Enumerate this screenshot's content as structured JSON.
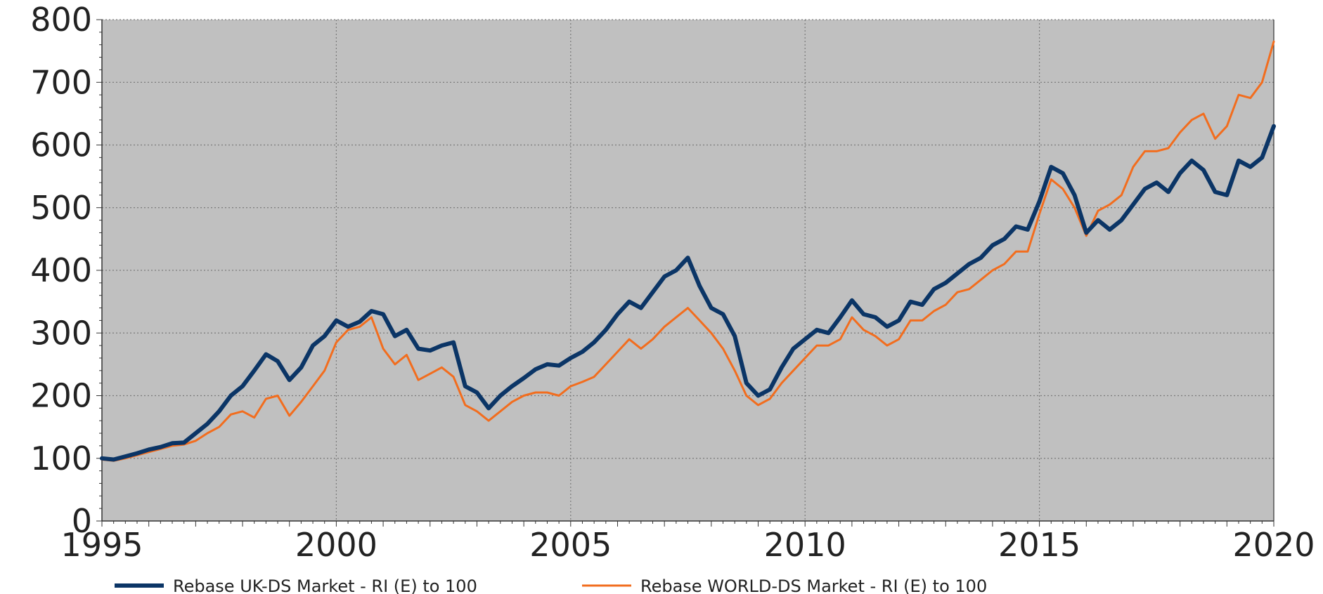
{
  "chart_data": {
    "type": "line",
    "title": "",
    "xlabel": "",
    "ylabel": "",
    "xlim": [
      1995,
      2020
    ],
    "ylim": [
      0,
      800
    ],
    "y_ticks": [
      0,
      100,
      200,
      300,
      400,
      500,
      600,
      700,
      800
    ],
    "x_ticks": [
      1995,
      2000,
      2005,
      2010,
      2015,
      2020
    ],
    "y_tick_labels": [
      "0",
      "100",
      "200",
      "300",
      "400",
      "500",
      "600",
      "700",
      "800"
    ],
    "x_tick_labels": [
      "1995",
      "2000",
      "2005",
      "2010",
      "2015",
      "2020"
    ],
    "grid": true,
    "plot_background": "#c0c0c0",
    "legend_position": "bottom",
    "series": [
      {
        "name": "Rebase UK-DS Market - RI (E) to 100",
        "color": "#0b3566",
        "points": [
          [
            1995.0,
            100
          ],
          [
            1995.25,
            98
          ],
          [
            1995.5,
            103
          ],
          [
            1995.75,
            108
          ],
          [
            1996.0,
            114
          ],
          [
            1996.25,
            118
          ],
          [
            1996.5,
            124
          ],
          [
            1996.75,
            125
          ],
          [
            1997.0,
            140
          ],
          [
            1997.25,
            155
          ],
          [
            1997.5,
            175
          ],
          [
            1997.75,
            200
          ],
          [
            1998.0,
            215
          ],
          [
            1998.25,
            240
          ],
          [
            1998.5,
            266
          ],
          [
            1998.75,
            255
          ],
          [
            1999.0,
            225
          ],
          [
            1999.25,
            245
          ],
          [
            1999.5,
            280
          ],
          [
            1999.75,
            295
          ],
          [
            2000.0,
            320
          ],
          [
            2000.25,
            310
          ],
          [
            2000.5,
            318
          ],
          [
            2000.75,
            335
          ],
          [
            2001.0,
            330
          ],
          [
            2001.25,
            295
          ],
          [
            2001.5,
            305
          ],
          [
            2001.75,
            275
          ],
          [
            2002.0,
            272
          ],
          [
            2002.25,
            280
          ],
          [
            2002.5,
            285
          ],
          [
            2002.75,
            215
          ],
          [
            2003.0,
            205
          ],
          [
            2003.25,
            180
          ],
          [
            2003.5,
            200
          ],
          [
            2003.75,
            215
          ],
          [
            2004.0,
            228
          ],
          [
            2004.25,
            242
          ],
          [
            2004.5,
            250
          ],
          [
            2004.75,
            248
          ],
          [
            2005.0,
            260
          ],
          [
            2005.25,
            270
          ],
          [
            2005.5,
            285
          ],
          [
            2005.75,
            305
          ],
          [
            2006.0,
            330
          ],
          [
            2006.25,
            350
          ],
          [
            2006.5,
            340
          ],
          [
            2006.75,
            365
          ],
          [
            2007.0,
            390
          ],
          [
            2007.25,
            400
          ],
          [
            2007.5,
            420
          ],
          [
            2007.75,
            375
          ],
          [
            2008.0,
            340
          ],
          [
            2008.25,
            330
          ],
          [
            2008.5,
            295
          ],
          [
            2008.75,
            220
          ],
          [
            2009.0,
            200
          ],
          [
            2009.25,
            210
          ],
          [
            2009.5,
            245
          ],
          [
            2009.75,
            275
          ],
          [
            2010.0,
            290
          ],
          [
            2010.25,
            305
          ],
          [
            2010.5,
            300
          ],
          [
            2010.75,
            325
          ],
          [
            2011.0,
            352
          ],
          [
            2011.25,
            330
          ],
          [
            2011.5,
            325
          ],
          [
            2011.75,
            310
          ],
          [
            2012.0,
            320
          ],
          [
            2012.25,
            350
          ],
          [
            2012.5,
            345
          ],
          [
            2012.75,
            370
          ],
          [
            2013.0,
            380
          ],
          [
            2013.25,
            395
          ],
          [
            2013.5,
            410
          ],
          [
            2013.75,
            420
          ],
          [
            2014.0,
            440
          ],
          [
            2014.25,
            450
          ],
          [
            2014.5,
            470
          ],
          [
            2014.75,
            465
          ],
          [
            2015.0,
            510
          ],
          [
            2015.25,
            565
          ],
          [
            2015.5,
            555
          ],
          [
            2015.75,
            520
          ],
          [
            2016.0,
            460
          ],
          [
            2016.25,
            480
          ],
          [
            2016.5,
            465
          ],
          [
            2016.75,
            480
          ],
          [
            2017.0,
            505
          ],
          [
            2017.25,
            530
          ],
          [
            2017.5,
            540
          ],
          [
            2017.75,
            525
          ],
          [
            2018.0,
            555
          ],
          [
            2018.25,
            575
          ],
          [
            2018.5,
            560
          ],
          [
            2018.75,
            525
          ],
          [
            2019.0,
            520
          ],
          [
            2019.25,
            575
          ],
          [
            2019.5,
            565
          ],
          [
            2019.75,
            580
          ],
          [
            2020.0,
            630
          ]
        ]
      },
      {
        "name": "Rebase WORLD-DS Market - RI (E) to 100",
        "color": "#f26d1e",
        "points": [
          [
            1995.0,
            98
          ],
          [
            1995.25,
            96
          ],
          [
            1995.5,
            100
          ],
          [
            1995.75,
            105
          ],
          [
            1996.0,
            110
          ],
          [
            1996.25,
            115
          ],
          [
            1996.5,
            120
          ],
          [
            1996.75,
            122
          ],
          [
            1997.0,
            128
          ],
          [
            1997.25,
            140
          ],
          [
            1997.5,
            150
          ],
          [
            1997.75,
            170
          ],
          [
            1998.0,
            175
          ],
          [
            1998.25,
            165
          ],
          [
            1998.5,
            195
          ],
          [
            1998.75,
            200
          ],
          [
            1999.0,
            168
          ],
          [
            1999.25,
            190
          ],
          [
            1999.5,
            215
          ],
          [
            1999.75,
            240
          ],
          [
            2000.0,
            285
          ],
          [
            2000.25,
            305
          ],
          [
            2000.5,
            310
          ],
          [
            2000.75,
            325
          ],
          [
            2001.0,
            275
          ],
          [
            2001.25,
            250
          ],
          [
            2001.5,
            265
          ],
          [
            2001.75,
            225
          ],
          [
            2002.0,
            235
          ],
          [
            2002.25,
            245
          ],
          [
            2002.5,
            230
          ],
          [
            2002.75,
            185
          ],
          [
            2003.0,
            175
          ],
          [
            2003.25,
            160
          ],
          [
            2003.5,
            175
          ],
          [
            2003.75,
            190
          ],
          [
            2004.0,
            200
          ],
          [
            2004.25,
            205
          ],
          [
            2004.5,
            205
          ],
          [
            2004.75,
            200
          ],
          [
            2005.0,
            215
          ],
          [
            2005.25,
            222
          ],
          [
            2005.5,
            230
          ],
          [
            2005.75,
            250
          ],
          [
            2006.0,
            270
          ],
          [
            2006.25,
            290
          ],
          [
            2006.5,
            275
          ],
          [
            2006.75,
            290
          ],
          [
            2007.0,
            310
          ],
          [
            2007.25,
            325
          ],
          [
            2007.5,
            340
          ],
          [
            2007.75,
            320
          ],
          [
            2008.0,
            300
          ],
          [
            2008.25,
            275
          ],
          [
            2008.5,
            240
          ],
          [
            2008.75,
            200
          ],
          [
            2009.0,
            185
          ],
          [
            2009.25,
            195
          ],
          [
            2009.5,
            220
          ],
          [
            2009.75,
            240
          ],
          [
            2010.0,
            260
          ],
          [
            2010.25,
            280
          ],
          [
            2010.5,
            280
          ],
          [
            2010.75,
            290
          ],
          [
            2011.0,
            325
          ],
          [
            2011.25,
            305
          ],
          [
            2011.5,
            295
          ],
          [
            2011.75,
            280
          ],
          [
            2012.0,
            290
          ],
          [
            2012.25,
            320
          ],
          [
            2012.5,
            320
          ],
          [
            2012.75,
            335
          ],
          [
            2013.0,
            345
          ],
          [
            2013.25,
            365
          ],
          [
            2013.5,
            370
          ],
          [
            2013.75,
            385
          ],
          [
            2014.0,
            400
          ],
          [
            2014.25,
            410
          ],
          [
            2014.5,
            430
          ],
          [
            2014.75,
            430
          ],
          [
            2015.0,
            490
          ],
          [
            2015.25,
            545
          ],
          [
            2015.5,
            530
          ],
          [
            2015.75,
            500
          ],
          [
            2016.0,
            455
          ],
          [
            2016.25,
            495
          ],
          [
            2016.5,
            505
          ],
          [
            2016.75,
            520
          ],
          [
            2017.0,
            565
          ],
          [
            2017.25,
            590
          ],
          [
            2017.5,
            590
          ],
          [
            2017.75,
            595
          ],
          [
            2018.0,
            620
          ],
          [
            2018.25,
            640
          ],
          [
            2018.5,
            650
          ],
          [
            2018.75,
            610
          ],
          [
            2019.0,
            630
          ],
          [
            2019.25,
            680
          ],
          [
            2019.5,
            675
          ],
          [
            2019.75,
            700
          ],
          [
            2020.0,
            765
          ]
        ]
      }
    ]
  }
}
